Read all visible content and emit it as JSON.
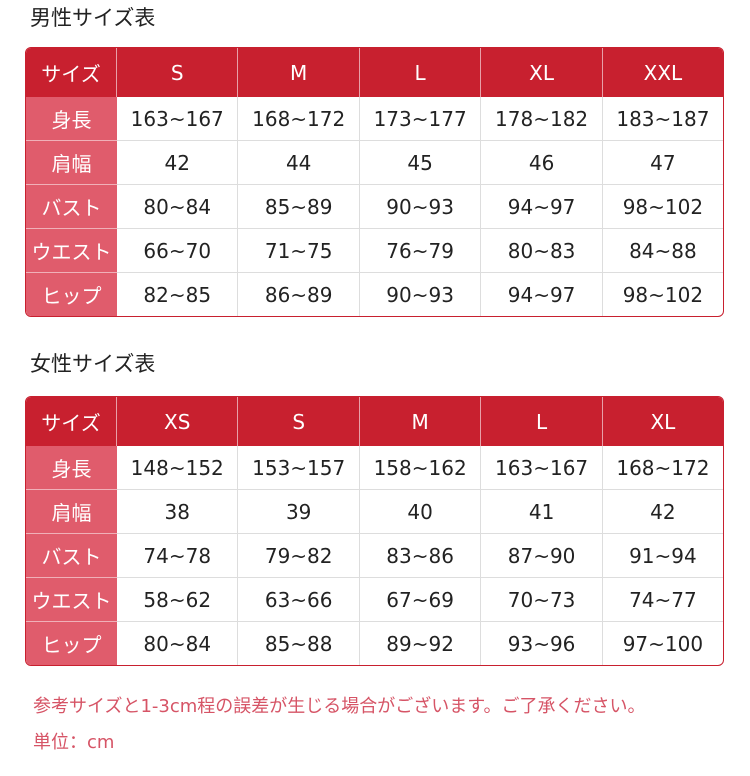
{
  "men": {
    "title": "男性サイズ表",
    "headers": [
      "サイズ",
      "S",
      "M",
      "L",
      "XL",
      "XXL"
    ],
    "rows": [
      {
        "label": "身長",
        "values": [
          "163~167",
          "168~172",
          "173~177",
          "178~182",
          "183~187"
        ]
      },
      {
        "label": "肩幅",
        "values": [
          "42",
          "44",
          "45",
          "46",
          "47"
        ]
      },
      {
        "label": "バスト",
        "values": [
          "80~84",
          "85~89",
          "90~93",
          "94~97",
          "98~102"
        ]
      },
      {
        "label": "ウエスト",
        "values": [
          "66~70",
          "71~75",
          "76~79",
          "80~83",
          "84~88"
        ]
      },
      {
        "label": "ヒップ",
        "values": [
          "82~85",
          "86~89",
          "90~93",
          "94~97",
          "98~102"
        ]
      }
    ]
  },
  "women": {
    "title": "女性サイズ表",
    "headers": [
      "サイズ",
      "XS",
      "S",
      "M",
      "L",
      "XL"
    ],
    "rows": [
      {
        "label": "身長",
        "values": [
          "148~152",
          "153~157",
          "158~162",
          "163~167",
          "168~172"
        ]
      },
      {
        "label": "肩幅",
        "values": [
          "38",
          "39",
          "40",
          "41",
          "42"
        ]
      },
      {
        "label": "バスト",
        "values": [
          "74~78",
          "79~82",
          "83~86",
          "87~90",
          "91~94"
        ]
      },
      {
        "label": "ウエスト",
        "values": [
          "58~62",
          "63~66",
          "67~69",
          "70~73",
          "74~77"
        ]
      },
      {
        "label": "ヒップ",
        "values": [
          "80~84",
          "85~88",
          "89~92",
          "93~96",
          "97~100"
        ]
      }
    ]
  },
  "notes": {
    "disclaimer": "参考サイズと1-3cm程の誤差が生じる場合がございます。ご了承ください。",
    "unit": "単位：cm"
  },
  "colors": {
    "header": "#c8202f",
    "label_column": "#e05c6c",
    "note_text": "#d65466"
  }
}
